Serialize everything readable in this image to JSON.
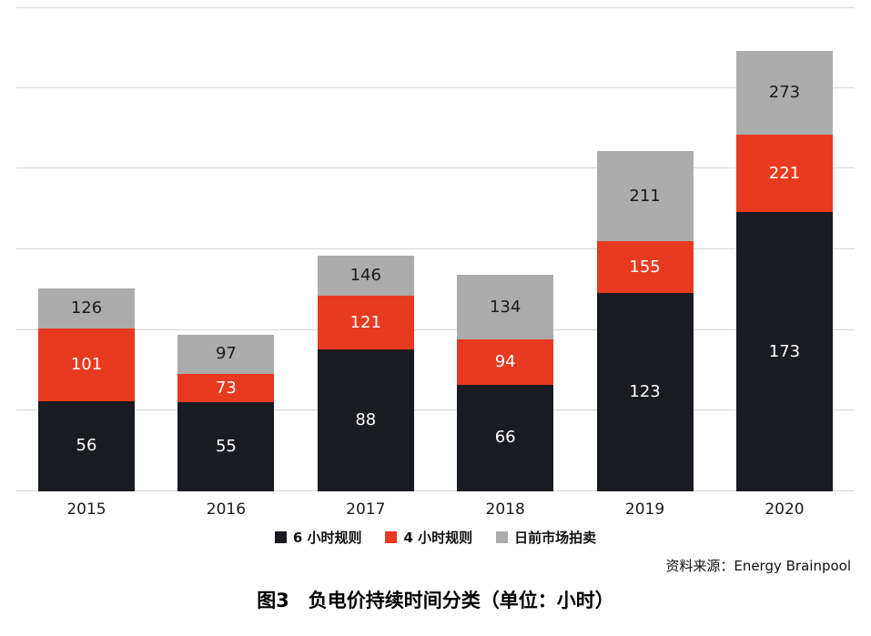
{
  "title": "图3　负电价持续时间分类（单位：小时）",
  "source": "资料来源：Energy Brainpool",
  "chart_data": {
    "type": "bar",
    "stacked": true,
    "title": "图3　负电价持续时间分类（单位：小时）",
    "categories": [
      "2015",
      "2016",
      "2017",
      "2018",
      "2019",
      "2020"
    ],
    "series": [
      {
        "key": "6h-rule",
        "name": "6 小时规则",
        "color": "#1a1a23",
        "label_color": "#ffffff",
        "labels": [
          56,
          55,
          88,
          66,
          123,
          173
        ]
      },
      {
        "key": "4h-rule",
        "name": "4 小时规则",
        "color": "#e83a20",
        "label_color": "#ffffff",
        "labels": [
          101,
          73,
          121,
          94,
          155,
          221
        ]
      },
      {
        "key": "day-ahead-auction",
        "name": "日前市场拍卖",
        "color": "#acacac",
        "label_color": "#1a1a1a",
        "labels": [
          126,
          97,
          146,
          134,
          211,
          273
        ]
      }
    ],
    "labels_are_cumulative": true,
    "segment_values": {
      "6h-rule": [
        56,
        55,
        88,
        66,
        123,
        173
      ],
      "4h-rule": [
        45,
        18,
        33,
        28,
        32,
        48
      ],
      "day-ahead-auction": [
        25,
        24,
        25,
        40,
        56,
        52
      ]
    },
    "ylim": [
      0,
      300
    ],
    "gridline_step": 50,
    "grid": true,
    "y_axis_labels_shown": false,
    "legend_position": "bottom",
    "gridline_color": "#d8d8d8"
  }
}
